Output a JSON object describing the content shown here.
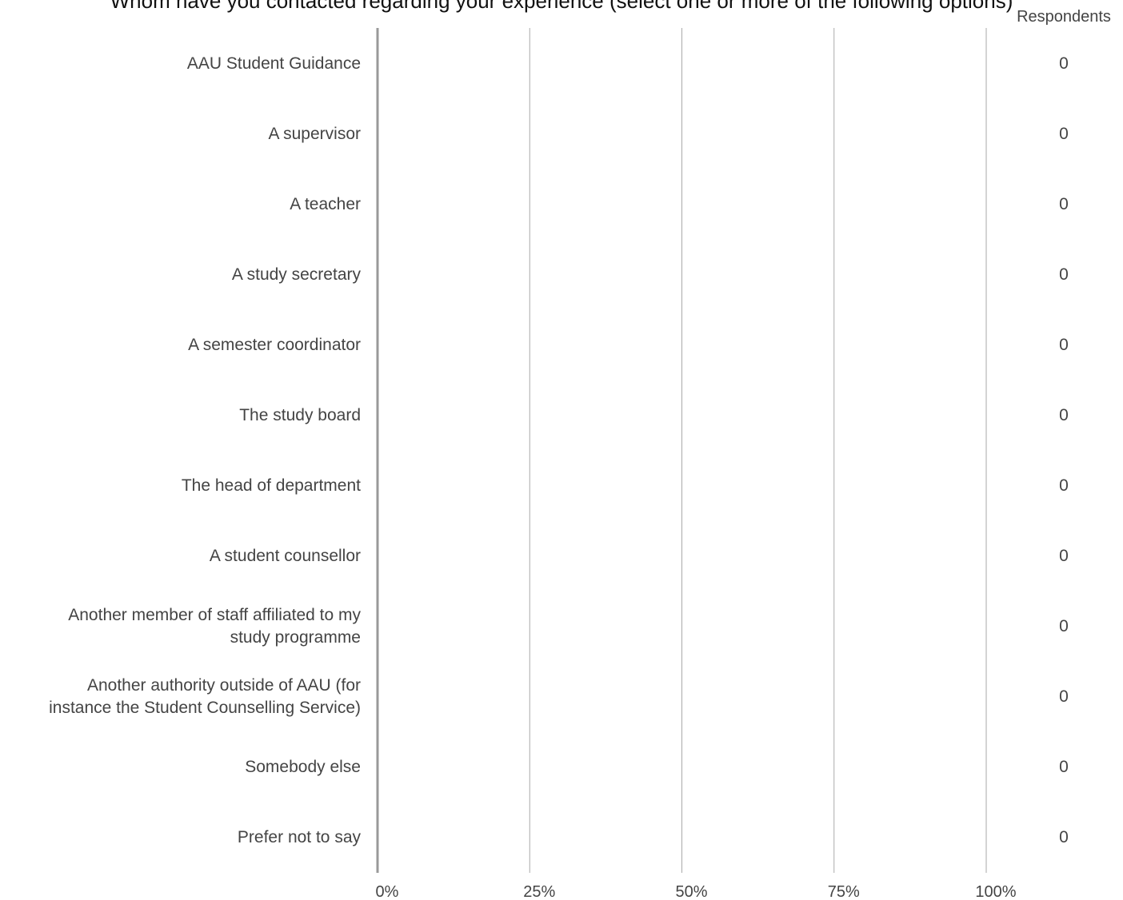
{
  "chart_data": {
    "type": "bar",
    "title": "Whom have you contacted regarding your experience (select one or more of the following options)",
    "respondents_header": "Respondents",
    "categories": [
      [
        "AAU Student Guidance"
      ],
      [
        "A supervisor"
      ],
      [
        "A teacher"
      ],
      [
        "A study secretary"
      ],
      [
        "A semester coordinator"
      ],
      [
        "The study board"
      ],
      [
        "The head of department"
      ],
      [
        "A student counsellor"
      ],
      [
        "Another member of staff affiliated to my",
        "study programme"
      ],
      [
        "Another authority outside of AAU (for",
        "instance the Student Counselling Service)"
      ],
      [
        "Somebody else"
      ],
      [
        "Prefer not to say"
      ]
    ],
    "values": [
      0,
      0,
      0,
      0,
      0,
      0,
      0,
      0,
      0,
      0,
      0,
      0
    ],
    "respondents": [
      "0",
      "0",
      "0",
      "0",
      "0",
      "0",
      "0",
      "0",
      "0",
      "0",
      "0",
      "0"
    ],
    "x_ticks": [
      "0%",
      "25%",
      "50%",
      "75%",
      "100%"
    ],
    "xlim": [
      0,
      100
    ],
    "grid": true,
    "colors": {
      "text": "#444444",
      "grid": "#aaaaaa",
      "axis": "#999999"
    }
  }
}
